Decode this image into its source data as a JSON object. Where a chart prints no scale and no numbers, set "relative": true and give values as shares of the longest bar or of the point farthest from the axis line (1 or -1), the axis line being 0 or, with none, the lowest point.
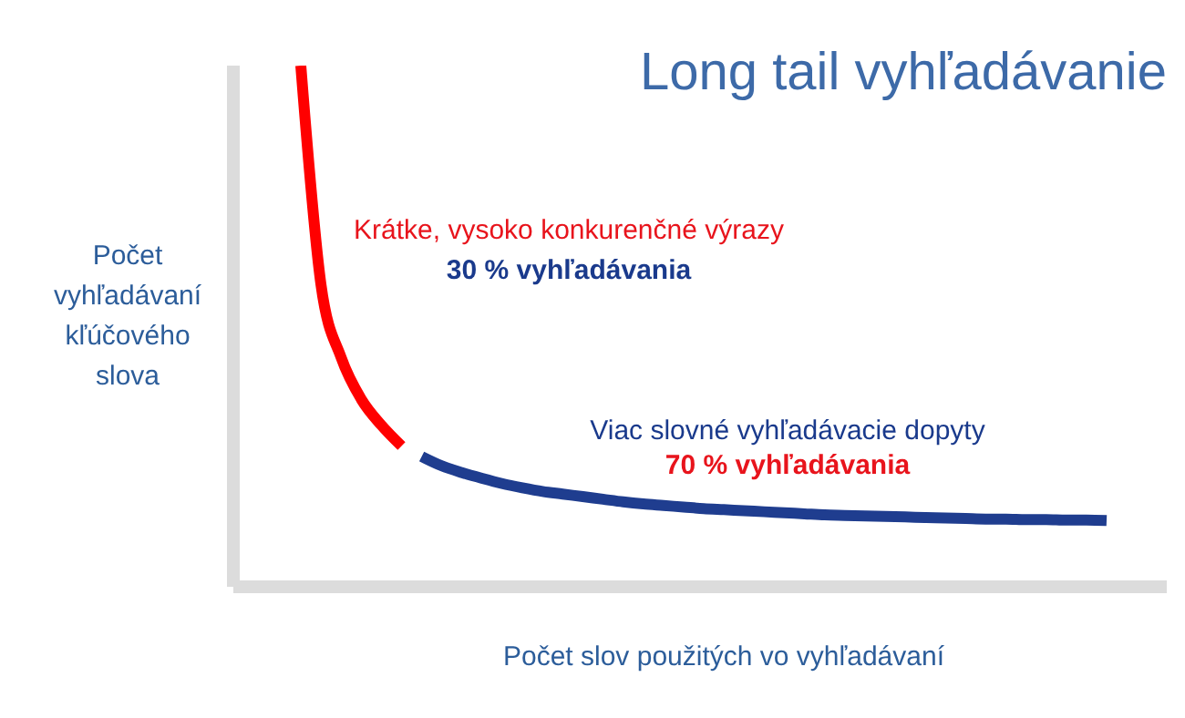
{
  "chart_data": {
    "type": "line",
    "relative": true,
    "title": "Long tail vyhľadávanie",
    "xlabel": "Počet slov použitých vo vyhľadávaní",
    "ylabel": "Počet vyhľadávaní kľúčového slova",
    "categories": [
      null,
      null,
      null,
      null,
      null,
      null,
      null,
      null,
      null,
      null,
      null,
      null,
      null,
      null,
      null,
      null,
      null,
      null,
      null,
      null,
      null,
      null,
      null,
      null,
      null,
      null,
      null,
      null,
      null,
      null,
      null,
      null,
      null,
      null,
      null,
      null,
      null,
      null,
      null,
      null,
      null
    ],
    "series": [
      {
        "color": "#ff0000",
        "values": [
          1.0,
          0.58,
          0.44,
          0.36,
          0.31,
          0.27,
          null,
          null,
          null,
          null,
          null,
          null,
          null,
          null,
          null,
          null,
          null,
          null,
          null,
          null,
          null,
          null,
          null,
          null,
          null,
          null,
          null,
          null,
          null,
          null,
          null,
          null,
          null,
          null,
          null,
          null,
          null,
          null,
          null,
          null,
          null
        ]
      },
      {
        "color": "#1f3d8f",
        "values": [
          null,
          null,
          null,
          null,
          null,
          null,
          0.25,
          0.232,
          0.219,
          0.208,
          0.198,
          0.19,
          0.183,
          0.178,
          0.173,
          0.168,
          0.163,
          0.159,
          0.156,
          0.153,
          0.15,
          0.148,
          0.146,
          0.144,
          0.142,
          0.14,
          0.138,
          0.137,
          0.136,
          0.135,
          0.134,
          0.133,
          0.132,
          0.131,
          0.13,
          0.13,
          0.129,
          0.129,
          0.128,
          0.128,
          0.127
        ]
      }
    ],
    "annotations": [
      "Krátke, vysoko konkurenčné výrazy",
      "30 % vyhľadávania",
      "Viac slovné vyhľadávacie dopyty",
      "70 % vyhľadávania"
    ],
    "grid": false,
    "marker": "none",
    "line_style": "solid"
  }
}
